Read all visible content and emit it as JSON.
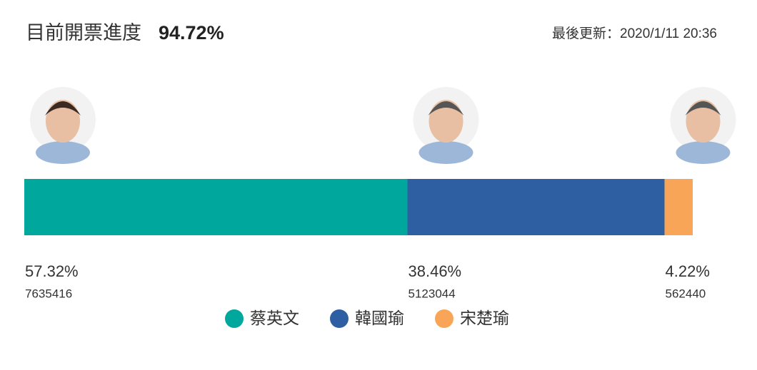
{
  "chart_data": {
    "type": "bar",
    "stacked": true,
    "orientation": "horizontal",
    "title": "目前開票進度",
    "progress": "94.72%",
    "updated": "最後更新：2020/1/11 20:36",
    "xlim": [
      0,
      100
    ],
    "series": [
      {
        "name": "蔡英文",
        "color": "#00a79d",
        "values": [
          57.32
        ],
        "value_labels": [
          "57.32%"
        ],
        "votes": [
          7635416
        ]
      },
      {
        "name": "韓國瑜",
        "color": "#2e5fa3",
        "values": [
          38.46
        ],
        "value_labels": [
          "38.46%"
        ],
        "votes": [
          5123044
        ]
      },
      {
        "name": "宋楚瑜",
        "color": "#f9a557",
        "values": [
          4.22
        ],
        "value_labels": [
          "4.22%"
        ],
        "votes": [
          562440
        ]
      }
    ]
  }
}
